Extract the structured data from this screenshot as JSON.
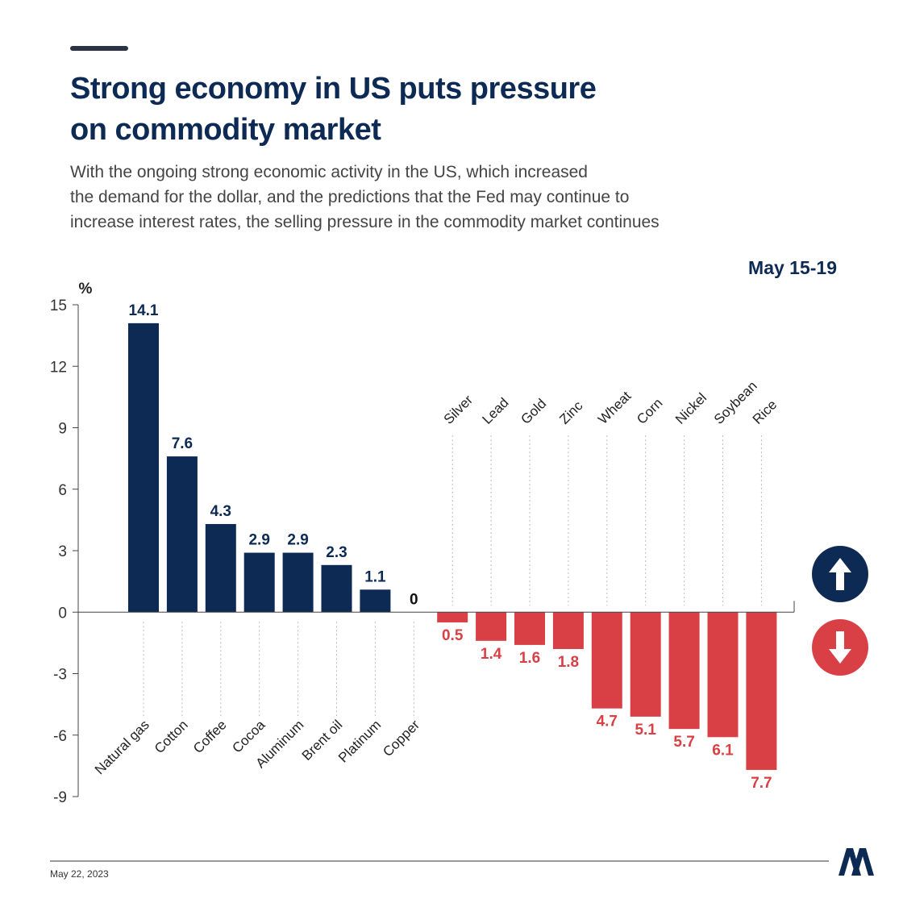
{
  "chart_data": {
    "type": "bar",
    "title": [
      "Strong economy in US puts pressure",
      "on commodity market"
    ],
    "subtitle": [
      "With the ongoing strong economic activity in the US, which increased",
      "the demand for the dollar, and the predictions that the Fed may continue to",
      "increase interest rates, the selling pressure in the commodity market continues"
    ],
    "period": "May 15-19",
    "y_label": "%",
    "date": "May 22, 2023",
    "categories": [
      "Natural gas",
      "Cotton",
      "Coffee",
      "Cocoa",
      "Aluminum",
      "Brent oil",
      "Platinum",
      "Copper",
      "Silver",
      "Lead",
      "Gold",
      "Zinc",
      "Wheat",
      "Corn",
      "Nickel",
      "Soybean",
      "Rice"
    ],
    "values": [
      14.1,
      7.6,
      4.3,
      2.9,
      2.9,
      2.3,
      1.1,
      0,
      -0.5,
      -1.4,
      -1.6,
      -1.8,
      -4.7,
      -5.1,
      -5.7,
      -6.1,
      -7.7
    ],
    "value_labels": [
      "14.1",
      "7.6",
      "4.3",
      "2.9",
      "2.9",
      "2.3",
      "1.1",
      "0",
      "0.5",
      "1.4",
      "1.6",
      "1.8",
      "4.7",
      "5.1",
      "5.7",
      "6.1",
      "7.7"
    ],
    "colors": {
      "positive": "#0d2a55",
      "negative": "#d94045",
      "zero": "#111111"
    },
    "ylim": [
      -9,
      15
    ],
    "yticks": [
      -9,
      -6,
      -3,
      0,
      3,
      6,
      9,
      12,
      15
    ]
  }
}
